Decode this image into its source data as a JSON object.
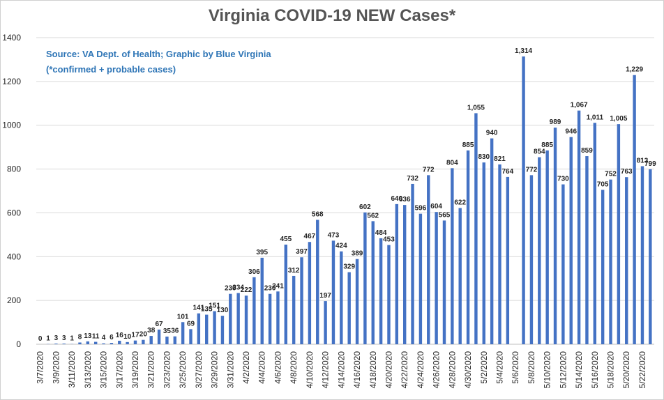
{
  "chart_data": {
    "type": "bar",
    "title": "Virginia COVID-19 NEW Cases*",
    "annotations": [
      "Source: VA Dept. of Health; Graphic by Blue Virginia",
      "(*confirmed + probable cases)"
    ],
    "categories": [
      "3/7/2020",
      null,
      "3/9/2020",
      null,
      "3/11/2020",
      null,
      "3/13/2020",
      null,
      "3/15/2020",
      null,
      "3/17/2020",
      null,
      "3/19/2020",
      null,
      "3/21/2020",
      null,
      "3/23/2020",
      null,
      "3/25/2020",
      null,
      "3/27/2020",
      null,
      "3/29/2020",
      null,
      "3/31/2020",
      null,
      "4/2/2020",
      null,
      "4/4/2020",
      null,
      "4/6/2020",
      null,
      "4/8/2020",
      null,
      "4/10/2020",
      null,
      "4/12/2020",
      null,
      "4/14/2020",
      null,
      "4/16/2020",
      null,
      "4/18/2020",
      null,
      "4/20/2020",
      null,
      "4/22/2020",
      null,
      "4/24/2020",
      null,
      "4/26/2020",
      null,
      "4/28/2020",
      null,
      "4/30/2020",
      null,
      "5/2/2020",
      null,
      "5/4/2020",
      null,
      "5/6/2020",
      null,
      "5/8/2020",
      null,
      "5/10/2020",
      null,
      "5/12/2020",
      null,
      "5/14/2020",
      null,
      "5/16/2020",
      null,
      "5/18/2020",
      null,
      "5/20/2020",
      null,
      "5/22/2020",
      null
    ],
    "values": [
      0,
      1,
      3,
      3,
      1,
      8,
      13,
      11,
      4,
      6,
      16,
      10,
      17,
      20,
      38,
      67,
      35,
      36,
      101,
      69,
      141,
      135,
      151,
      130,
      230,
      234,
      222,
      306,
      395,
      230,
      241,
      455,
      312,
      397,
      467,
      568,
      197,
      473,
      424,
      329,
      389,
      602,
      562,
      484,
      453,
      640,
      636,
      732,
      596,
      772,
      604,
      565,
      804,
      622,
      885,
      1055,
      830,
      940,
      821,
      764,
      null,
      1314,
      772,
      854,
      885,
      989,
      730,
      946,
      1067,
      859,
      1011,
      705,
      752,
      1005,
      763,
      1229,
      813,
      799
    ],
    "value_labels": [
      "0",
      "1",
      "3",
      "3",
      "1",
      "8",
      "13",
      "11",
      "4",
      "6",
      "16",
      "10",
      "17",
      "20",
      "38",
      "67",
      "35",
      "36",
      "101",
      "69",
      "141",
      "135",
      "151",
      "130",
      "230",
      "234",
      "222",
      "306",
      "395",
      "230",
      "241",
      "455",
      "312",
      "397",
      "467",
      "568",
      "197",
      "473",
      "424",
      "329",
      "389",
      "602",
      "562",
      "484",
      "453",
      "640",
      "636",
      "732",
      "596",
      "772",
      "604",
      "565",
      "804",
      "622",
      "885",
      "1,055",
      "830",
      "940",
      "821",
      "764",
      null,
      "1,314",
      "772",
      "854",
      "885",
      "989",
      "730",
      "946",
      "1,067",
      "859",
      "1,011",
      "705",
      "752",
      "1,005",
      "763",
      "1,229",
      "813",
      "799"
    ],
    "color": "#4472c4",
    "ylim": [
      0,
      1400
    ],
    "yticks": [
      0,
      200,
      400,
      600,
      800,
      1000,
      1200,
      1400
    ],
    "grid": true
  }
}
